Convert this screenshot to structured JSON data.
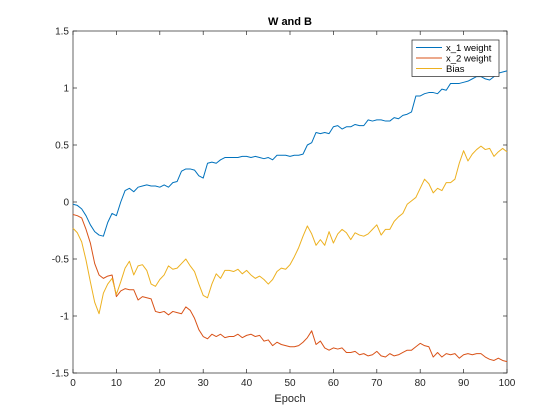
{
  "chart_data": {
    "type": "line",
    "title": "W and B",
    "xlabel": "Epoch",
    "ylabel": "",
    "xlim": [
      0,
      100
    ],
    "ylim": [
      -1.5,
      1.5
    ],
    "x_ticks": [
      0,
      10,
      20,
      30,
      40,
      50,
      60,
      70,
      80,
      90,
      100
    ],
    "y_ticks": [
      -1.5,
      -1,
      -0.5,
      0,
      0.5,
      1,
      1.5
    ],
    "y_tick_labels": [
      "-1.5",
      "-1",
      "-0.5",
      "0",
      "0.5",
      "1",
      "1.5"
    ],
    "grid": false,
    "legend_position": "top-right",
    "x": [
      0,
      1,
      2,
      3,
      4,
      5,
      6,
      7,
      8,
      9,
      10,
      11,
      12,
      13,
      14,
      15,
      16,
      17,
      18,
      19,
      20,
      21,
      22,
      23,
      24,
      25,
      26,
      27,
      28,
      29,
      30,
      31,
      32,
      33,
      34,
      35,
      36,
      37,
      38,
      39,
      40,
      41,
      42,
      43,
      44,
      45,
      46,
      47,
      48,
      49,
      50,
      51,
      52,
      53,
      54,
      55,
      56,
      57,
      58,
      59,
      60,
      61,
      62,
      63,
      64,
      65,
      66,
      67,
      68,
      69,
      70,
      71,
      72,
      73,
      74,
      75,
      76,
      77,
      78,
      79,
      80,
      81,
      82,
      83,
      84,
      85,
      86,
      87,
      88,
      89,
      90,
      91,
      92,
      93,
      94,
      95,
      96,
      97,
      98,
      99,
      100
    ],
    "series": [
      {
        "name": "x_1 weight",
        "color": "#0072BD",
        "values": [
          -0.02,
          -0.03,
          -0.06,
          -0.12,
          -0.2,
          -0.26,
          -0.29,
          -0.3,
          -0.18,
          -0.1,
          -0.12,
          0.0,
          0.1,
          0.12,
          0.09,
          0.13,
          0.14,
          0.15,
          0.14,
          0.14,
          0.13,
          0.15,
          0.13,
          0.17,
          0.18,
          0.27,
          0.29,
          0.29,
          0.28,
          0.23,
          0.21,
          0.34,
          0.35,
          0.34,
          0.37,
          0.39,
          0.39,
          0.39,
          0.39,
          0.4,
          0.4,
          0.39,
          0.4,
          0.39,
          0.38,
          0.39,
          0.37,
          0.41,
          0.41,
          0.41,
          0.4,
          0.41,
          0.41,
          0.42,
          0.5,
          0.52,
          0.61,
          0.6,
          0.61,
          0.6,
          0.66,
          0.67,
          0.64,
          0.66,
          0.66,
          0.68,
          0.67,
          0.67,
          0.72,
          0.71,
          0.72,
          0.72,
          0.71,
          0.71,
          0.74,
          0.73,
          0.76,
          0.77,
          0.79,
          0.93,
          0.93,
          0.95,
          0.96,
          0.96,
          0.95,
          0.99,
          0.98,
          1.04,
          1.04,
          1.04,
          1.05,
          1.06,
          1.08,
          1.1,
          1.1,
          1.08,
          1.07,
          1.1,
          1.13,
          1.14,
          1.15
        ]
      },
      {
        "name": "x_2 weight",
        "color": "#D95319",
        "values": [
          -0.11,
          -0.12,
          -0.14,
          -0.24,
          -0.36,
          -0.54,
          -0.64,
          -0.67,
          -0.65,
          -0.64,
          -0.83,
          -0.78,
          -0.76,
          -0.77,
          -0.77,
          -0.86,
          -0.83,
          -0.84,
          -0.85,
          -0.96,
          -0.97,
          -0.96,
          -0.99,
          -0.96,
          -0.97,
          -0.98,
          -0.92,
          -0.95,
          -1.02,
          -1.12,
          -1.18,
          -1.2,
          -1.16,
          -1.18,
          -1.16,
          -1.19,
          -1.18,
          -1.18,
          -1.16,
          -1.19,
          -1.17,
          -1.16,
          -1.18,
          -1.17,
          -1.22,
          -1.21,
          -1.26,
          -1.23,
          -1.25,
          -1.26,
          -1.27,
          -1.27,
          -1.26,
          -1.23,
          -1.19,
          -1.13,
          -1.25,
          -1.22,
          -1.28,
          -1.3,
          -1.28,
          -1.29,
          -1.28,
          -1.32,
          -1.32,
          -1.31,
          -1.34,
          -1.33,
          -1.35,
          -1.34,
          -1.31,
          -1.35,
          -1.36,
          -1.33,
          -1.35,
          -1.34,
          -1.32,
          -1.3,
          -1.3,
          -1.27,
          -1.24,
          -1.26,
          -1.27,
          -1.36,
          -1.32,
          -1.36,
          -1.33,
          -1.34,
          -1.33,
          -1.37,
          -1.34,
          -1.33,
          -1.34,
          -1.33,
          -1.33,
          -1.36,
          -1.38,
          -1.39,
          -1.37,
          -1.39,
          -1.4
        ]
      },
      {
        "name": "Bias",
        "color": "#EDB120",
        "values": [
          -0.23,
          -0.27,
          -0.35,
          -0.51,
          -0.7,
          -0.88,
          -0.98,
          -0.8,
          -0.72,
          -0.67,
          -0.81,
          -0.7,
          -0.58,
          -0.52,
          -0.64,
          -0.56,
          -0.55,
          -0.6,
          -0.72,
          -0.74,
          -0.68,
          -0.64,
          -0.56,
          -0.59,
          -0.58,
          -0.54,
          -0.5,
          -0.56,
          -0.61,
          -0.72,
          -0.82,
          -0.84,
          -0.72,
          -0.63,
          -0.67,
          -0.6,
          -0.6,
          -0.61,
          -0.59,
          -0.63,
          -0.6,
          -0.64,
          -0.67,
          -0.65,
          -0.68,
          -0.72,
          -0.68,
          -0.61,
          -0.58,
          -0.59,
          -0.55,
          -0.48,
          -0.4,
          -0.3,
          -0.21,
          -0.28,
          -0.38,
          -0.33,
          -0.38,
          -0.26,
          -0.36,
          -0.28,
          -0.24,
          -0.27,
          -0.33,
          -0.27,
          -0.29,
          -0.3,
          -0.28,
          -0.24,
          -0.2,
          -0.29,
          -0.24,
          -0.24,
          -0.17,
          -0.13,
          -0.1,
          -0.02,
          0.01,
          0.04,
          0.12,
          0.2,
          0.16,
          0.08,
          0.12,
          0.1,
          0.17,
          0.17,
          0.2,
          0.34,
          0.45,
          0.36,
          0.42,
          0.46,
          0.49,
          0.46,
          0.47,
          0.4,
          0.44,
          0.47,
          0.44
        ]
      }
    ]
  }
}
